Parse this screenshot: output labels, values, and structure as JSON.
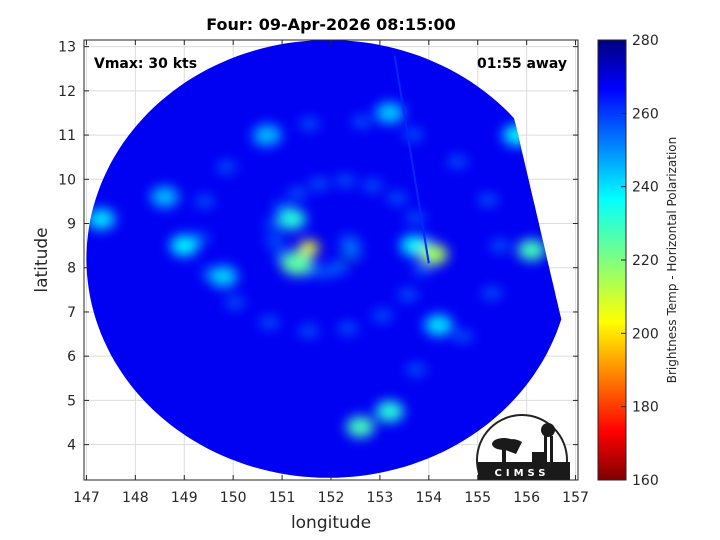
{
  "chart_data": {
    "type": "heatmap",
    "title": "Four: 09-Apr-2026 08:15:00",
    "xlabel": "longitude",
    "ylabel": "latitude",
    "xlim": [
      146.95,
      157.05
    ],
    "ylim": [
      3.2,
      13.15
    ],
    "xticks": [
      147,
      148,
      149,
      150,
      151,
      152,
      153,
      154,
      155,
      156,
      157
    ],
    "yticks": [
      4,
      5,
      6,
      7,
      8,
      9,
      10,
      11,
      12,
      13
    ],
    "grid": true,
    "annotations": {
      "top_left": "Vmax: 30 kts",
      "top_right": "01:55 away"
    },
    "colorbar": {
      "label": "Brightness Temp - Horizontal Polarization",
      "range": [
        160,
        280
      ],
      "ticks": [
        160,
        180,
        200,
        220,
        240,
        260,
        280
      ],
      "colormap": "jet"
    },
    "swath": {
      "center": [
        151.95,
        8.2
      ],
      "radius_deg": 4.95,
      "right_edge": "diagonal cut from (155.7, 11.6) to (156.8, 6.4)",
      "background_value": 268
    },
    "features": [
      {
        "kind": "center",
        "lon": 152.35,
        "lat": 8.15,
        "value": 270
      },
      {
        "kind": "warm-core",
        "lon": 151.55,
        "lat": 8.45,
        "value": 205
      },
      {
        "kind": "eyewall",
        "lon": 151.3,
        "lat": 8.1,
        "value": 225
      },
      {
        "kind": "band",
        "lon": 151.2,
        "lat": 9.1,
        "value": 232
      },
      {
        "kind": "band",
        "lon": 149.0,
        "lat": 8.5,
        "value": 238
      },
      {
        "kind": "band",
        "lon": 149.8,
        "lat": 7.8,
        "value": 242
      },
      {
        "kind": "band",
        "lon": 153.7,
        "lat": 8.5,
        "value": 238
      },
      {
        "kind": "band",
        "lon": 154.1,
        "lat": 8.3,
        "value": 215
      },
      {
        "kind": "band",
        "lon": 152.6,
        "lat": 4.4,
        "value": 228
      },
      {
        "kind": "band",
        "lon": 153.2,
        "lat": 4.75,
        "value": 232
      },
      {
        "kind": "band",
        "lon": 156.1,
        "lat": 8.4,
        "value": 228
      },
      {
        "kind": "band",
        "lon": 155.8,
        "lat": 11.0,
        "value": 238
      },
      {
        "kind": "band",
        "lon": 147.3,
        "lat": 9.1,
        "value": 240
      },
      {
        "kind": "band",
        "lon": 148.6,
        "lat": 9.6,
        "value": 245
      },
      {
        "kind": "band",
        "lon": 150.7,
        "lat": 11.0,
        "value": 245
      },
      {
        "kind": "band",
        "lon": 153.2,
        "lat": 11.5,
        "value": 243
      },
      {
        "kind": "band",
        "lon": 154.2,
        "lat": 6.7,
        "value": 240
      }
    ],
    "logo_text": "CIMSS"
  },
  "colors": {
    "axis": "#262626",
    "grid": "#dcdcdc",
    "text": "#000000"
  }
}
